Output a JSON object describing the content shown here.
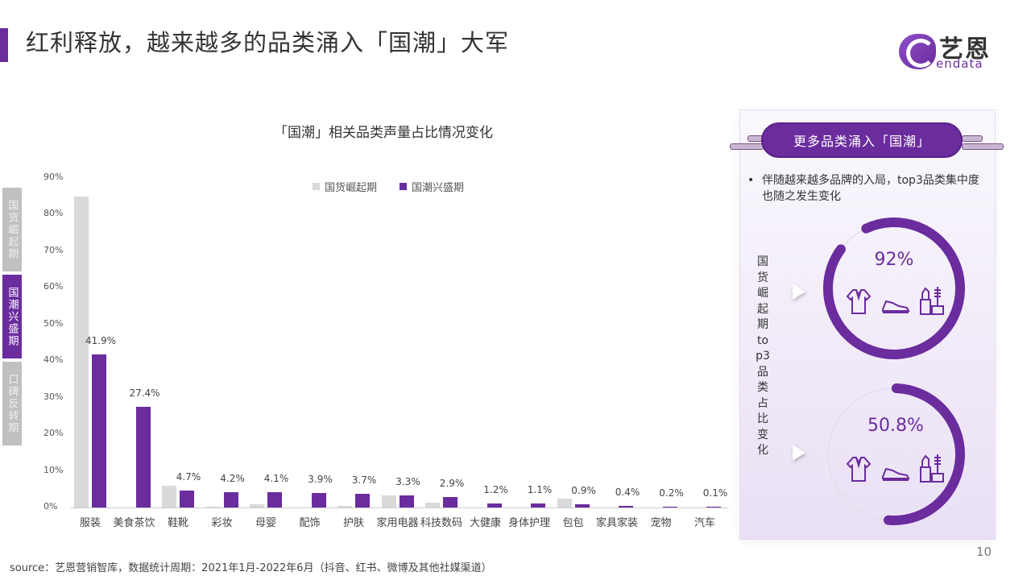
{
  "header": {
    "title": "红利释放，越来越多的品类涌入「国潮」大军",
    "logo_cn": "艺恩",
    "logo_en": "endata"
  },
  "side_tabs": [
    {
      "label": "国货崛起期",
      "active": false
    },
    {
      "label": "国潮兴盛期",
      "active": true
    },
    {
      "label": "口碑反转期",
      "active": false
    }
  ],
  "colors": {
    "accent": "#6b2c9e",
    "gray_series": "#d9d9d9",
    "purple_series": "#6b2c9e"
  },
  "chart_data": {
    "type": "bar",
    "title": "「国潮」相关品类声量占比情况变化",
    "xlabel": "",
    "ylabel": "",
    "ylim": [
      0,
      90
    ],
    "yticks": [
      "0%",
      "10%",
      "20%",
      "30%",
      "40%",
      "50%",
      "60%",
      "70%",
      "80%",
      "90%"
    ],
    "grid": false,
    "legend_position": "top",
    "categories": [
      "服装",
      "美食茶饮",
      "鞋靴",
      "彩妆",
      "母婴",
      "配饰",
      "护肤",
      "家用电器",
      "科技数码",
      "大健康",
      "身体护理",
      "包包",
      "家具家装",
      "宠物",
      "汽车"
    ],
    "series": [
      {
        "name": "国货崛起期",
        "color": "#d9d9d9",
        "values": [
          85.0,
          0,
          6.0,
          0.3,
          0.8,
          0,
          0.5,
          3.2,
          1.3,
          0,
          0,
          2.5,
          0,
          0,
          0
        ]
      },
      {
        "name": "国潮兴盛期",
        "color": "#6b2c9e",
        "values": [
          41.9,
          27.4,
          4.7,
          4.2,
          4.1,
          3.9,
          3.7,
          3.3,
          2.9,
          1.2,
          1.1,
          0.9,
          0.4,
          0.2,
          0.1
        ],
        "labels": [
          "41.9%",
          "27.4%",
          "4.7%",
          "4.2%",
          "4.1%",
          "3.9%",
          "3.7%",
          "3.3%",
          "2.9%",
          "1.2%",
          "1.1%",
          "0.9%",
          "0.4%",
          "0.2%",
          "0.1%"
        ]
      }
    ]
  },
  "panel": {
    "banner": "更多品类涌入「国潮」",
    "bullet": "伴随越来越多品牌的入局，top3品类集中度也随之发生变化",
    "vertical_label": "国货崛起期top3品类占比变化",
    "donuts": [
      {
        "value": "92%",
        "percent": 92
      },
      {
        "value": "50.8%",
        "percent": 50.8
      }
    ],
    "icons": [
      "shirt-icon",
      "sneaker-icon",
      "cosmetics-icon"
    ]
  },
  "footer": {
    "page_number": "10",
    "source": "source：艺恩营销智库，数据统计周期：2021年1月-2022年6月（抖音、红书、微博及其他社媒渠道）"
  }
}
